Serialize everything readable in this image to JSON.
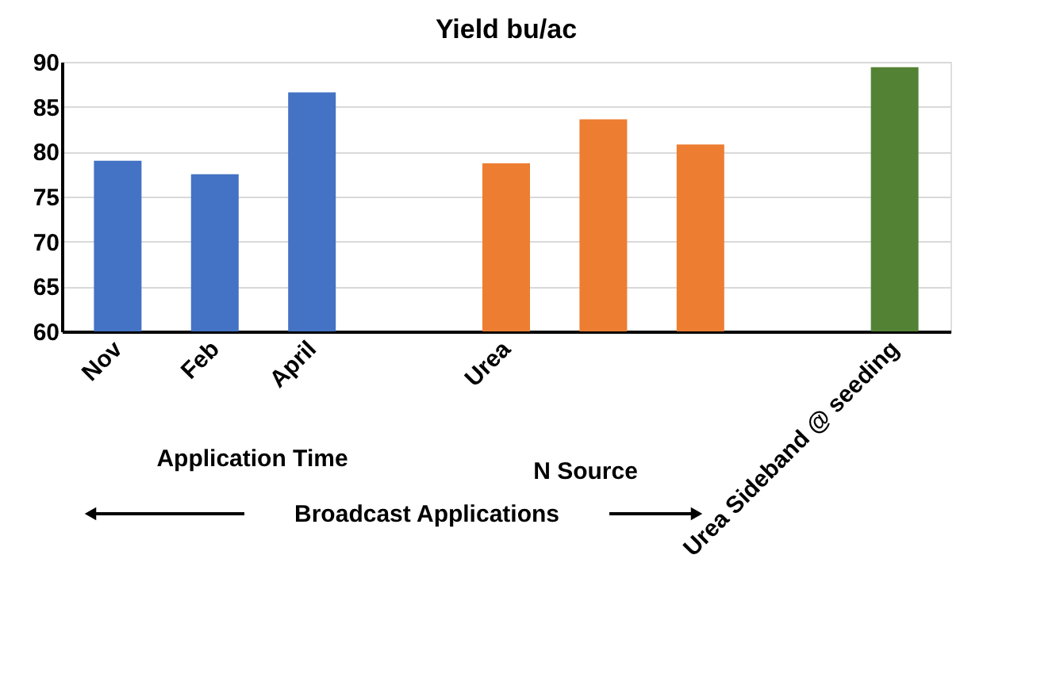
{
  "chart_data": {
    "type": "bar",
    "title": "Yield bu/ac",
    "categories": [
      "Nov",
      "Feb",
      "April",
      null,
      "Urea",
      null,
      null,
      null,
      "Urea Sideband @ seeding"
    ],
    "values": [
      79,
      77.5,
      86.6,
      null,
      78.7,
      83.6,
      80.8,
      null,
      89.4
    ],
    "colors": [
      "#4472c4",
      "#4472c4",
      "#4472c4",
      null,
      "#ed7d31",
      "#ed7d31",
      "#ed7d31",
      null,
      "#548235"
    ],
    "ylim": [
      60,
      90
    ],
    "yticks": [
      60,
      65,
      70,
      75,
      80,
      85,
      90
    ],
    "grid": "y",
    "annotations": [
      "Application Time",
      "N Source",
      "Broadcast Applications"
    ]
  }
}
